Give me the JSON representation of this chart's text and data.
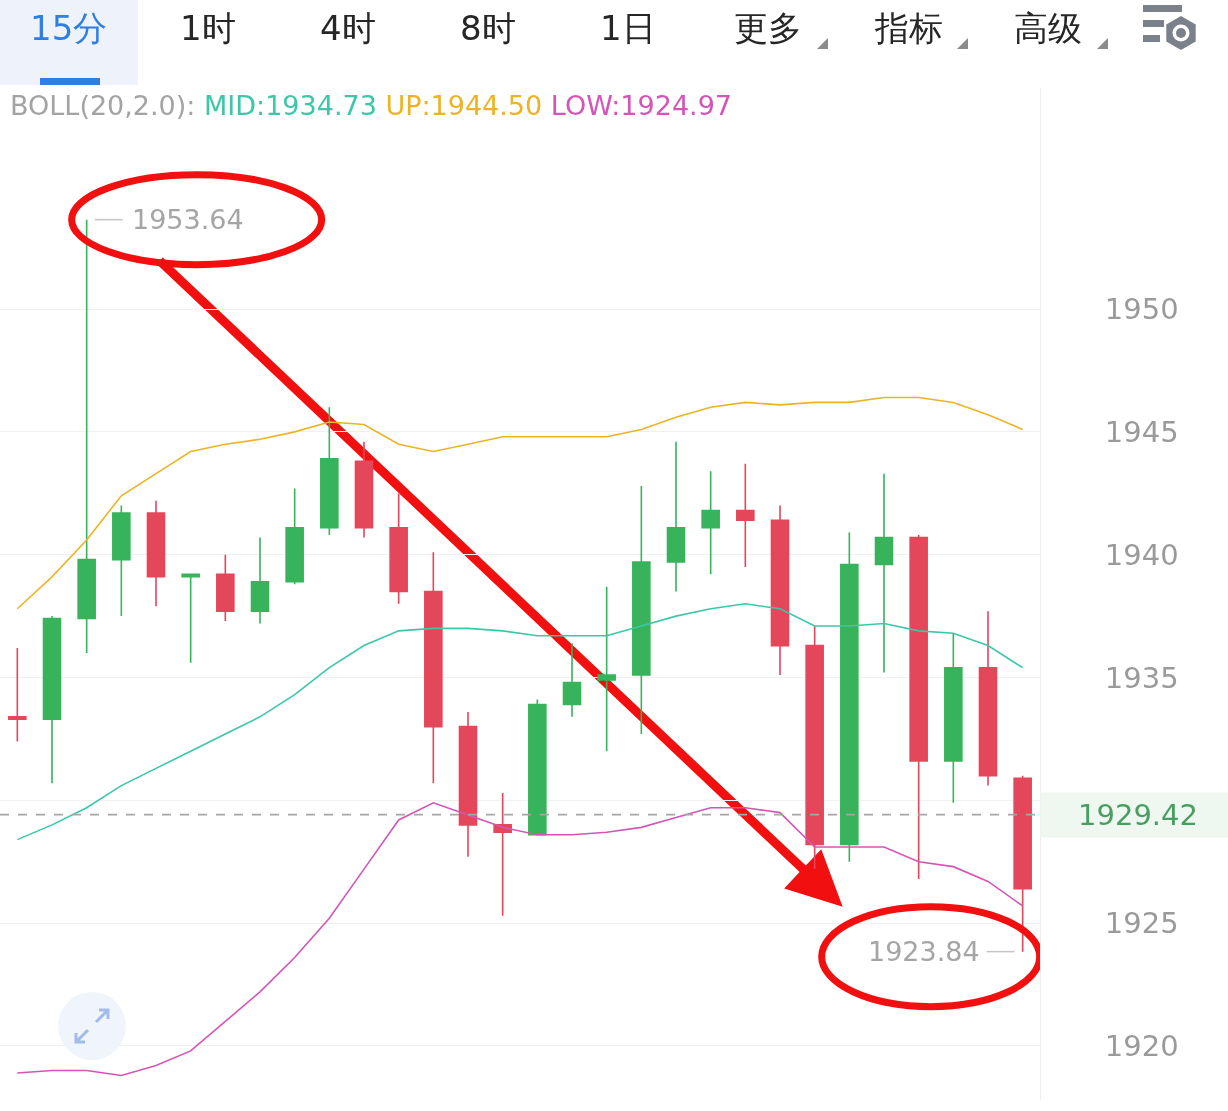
{
  "chart_data": {
    "type": "candlestick",
    "categories": [
      null,
      null,
      null,
      null,
      null,
      null,
      null,
      null,
      null,
      null,
      null,
      null,
      null,
      null,
      null,
      null,
      null,
      null,
      null,
      null,
      null,
      null,
      null,
      null,
      null,
      null,
      null,
      null,
      null,
      null
    ],
    "ohlc": [
      [
        1933.4,
        1936.2,
        1932.4,
        1933.3
      ],
      [
        1933.3,
        1937.5,
        1930.7,
        1937.4
      ],
      [
        1937.4,
        1953.64,
        1936.0,
        1939.8
      ],
      [
        1939.8,
        1942.0,
        1937.5,
        1941.7
      ],
      [
        1941.7,
        1942.2,
        1937.9,
        1939.1
      ],
      [
        1939.1,
        1939.2,
        1935.6,
        1939.2
      ],
      [
        1939.2,
        1940.0,
        1937.3,
        1937.7
      ],
      [
        1937.7,
        1940.7,
        1937.2,
        1938.9
      ],
      [
        1938.9,
        1942.7,
        1938.8,
        1941.1
      ],
      [
        1941.1,
        1946.0,
        1940.8,
        1943.9
      ],
      [
        1943.8,
        1944.6,
        1940.7,
        1941.1
      ],
      [
        1941.1,
        1942.5,
        1938.0,
        1938.5
      ],
      [
        1938.5,
        1940.1,
        1930.7,
        1933.0
      ],
      [
        1933.0,
        1933.6,
        1927.7,
        1929.0
      ],
      [
        1929.0,
        1930.3,
        1925.3,
        1928.7
      ],
      [
        1928.6,
        1934.1,
        1928.6,
        1933.9
      ],
      [
        1933.9,
        1936.4,
        1933.4,
        1934.8
      ],
      [
        1934.9,
        1938.7,
        1932.0,
        1935.1
      ],
      [
        1935.1,
        1942.8,
        1932.7,
        1939.7
      ],
      [
        1939.7,
        1944.6,
        1938.5,
        1941.1
      ],
      [
        1941.1,
        1943.4,
        1939.2,
        1941.8
      ],
      [
        1941.8,
        1943.7,
        1939.5,
        1941.4
      ],
      [
        1941.4,
        1942.0,
        1935.1,
        1936.3
      ],
      [
        1936.3,
        1937.1,
        1927.2,
        1928.2
      ],
      [
        1928.2,
        1940.9,
        1927.5,
        1939.6
      ],
      [
        1939.6,
        1943.3,
        1935.2,
        1940.7
      ],
      [
        1940.7,
        1940.8,
        1926.8,
        1931.6
      ],
      [
        1931.6,
        1936.8,
        1929.9,
        1935.4
      ],
      [
        1935.4,
        1937.7,
        1930.6,
        1931.0
      ],
      [
        1930.9,
        1931.0,
        1923.84,
        1926.4
      ]
    ],
    "colors": [
      "#e4475a",
      "#37b35b",
      "#37b35b",
      "#37b35b",
      "#e4475a",
      "#37b35b",
      "#e4475a",
      "#37b35b",
      "#37b35b",
      "#37b35b",
      "#e4475a",
      "#e4475a",
      "#e4475a",
      "#e4475a",
      "#e4475a",
      "#37b35b",
      "#37b35b",
      "#37b35b",
      "#37b35b",
      "#37b35b",
      "#37b35b",
      "#e4475a",
      "#e4475a",
      "#e4475a",
      "#37b35b",
      "#37b35b",
      "#e4475a",
      "#37b35b",
      "#e4475a",
      "#e4475a"
    ],
    "series": [
      {
        "type": "line",
        "name": "MID:1934.73",
        "color": "#3cc7a7",
        "values": [
          1928.4,
          1929.0,
          1929.7,
          1930.6,
          1931.3,
          1932.0,
          1932.7,
          1933.4,
          1934.3,
          1935.4,
          1936.3,
          1936.9,
          1937.0,
          1937.0,
          1936.9,
          1936.7,
          1936.7,
          1936.7,
          1937.1,
          1937.5,
          1937.8,
          1938.0,
          1937.8,
          1937.1,
          1937.1,
          1937.2,
          1936.9,
          1936.8,
          1936.3,
          1935.4
        ]
      },
      {
        "type": "line",
        "name": "UP:1944.50",
        "color": "#ecb424",
        "values": [
          1937.8,
          1939.1,
          1940.6,
          1942.4,
          1943.3,
          1944.2,
          1944.5,
          1944.7,
          1945.0,
          1945.4,
          1945.3,
          1944.5,
          1944.2,
          1944.5,
          1944.8,
          1944.8,
          1944.8,
          1944.8,
          1945.1,
          1945.6,
          1946.0,
          1946.2,
          1946.1,
          1946.2,
          1946.2,
          1946.4,
          1946.4,
          1946.2,
          1945.7,
          1945.1
        ]
      },
      {
        "type": "line",
        "name": "LOW:1924.97",
        "color": "#d455b8",
        "values": [
          1918.9,
          1919.0,
          1919.0,
          1918.8,
          1919.2,
          1919.8,
          1921.0,
          1922.2,
          1923.6,
          1925.2,
          1927.2,
          1929.2,
          1929.9,
          1929.4,
          1928.9,
          1928.6,
          1928.6,
          1928.7,
          1928.9,
          1929.3,
          1929.7,
          1929.7,
          1929.5,
          1928.1,
          1928.1,
          1928.1,
          1927.5,
          1927.3,
          1926.7,
          1925.7
        ]
      }
    ],
    "legend_title": "BOLL(20,2.0):",
    "legend": "top left",
    "ylim": [
      1917.8,
      1959.0
    ],
    "yticks": [
      1920,
      1925,
      {
        "value": 1930,
        "label": null
      },
      1935,
      1940,
      1945,
      1950
    ],
    "grid": "y",
    "ref_lines": [
      {
        "axis": "y",
        "value": 1929.42,
        "color": "#a6a6a6",
        "line_style": "dashed"
      }
    ],
    "annotations": [
      "15分",
      "1时",
      "4时",
      "8时",
      "1日",
      "更多",
      "指标",
      "高级",
      "1953.64",
      "1923.84",
      "1929.42"
    ]
  }
}
